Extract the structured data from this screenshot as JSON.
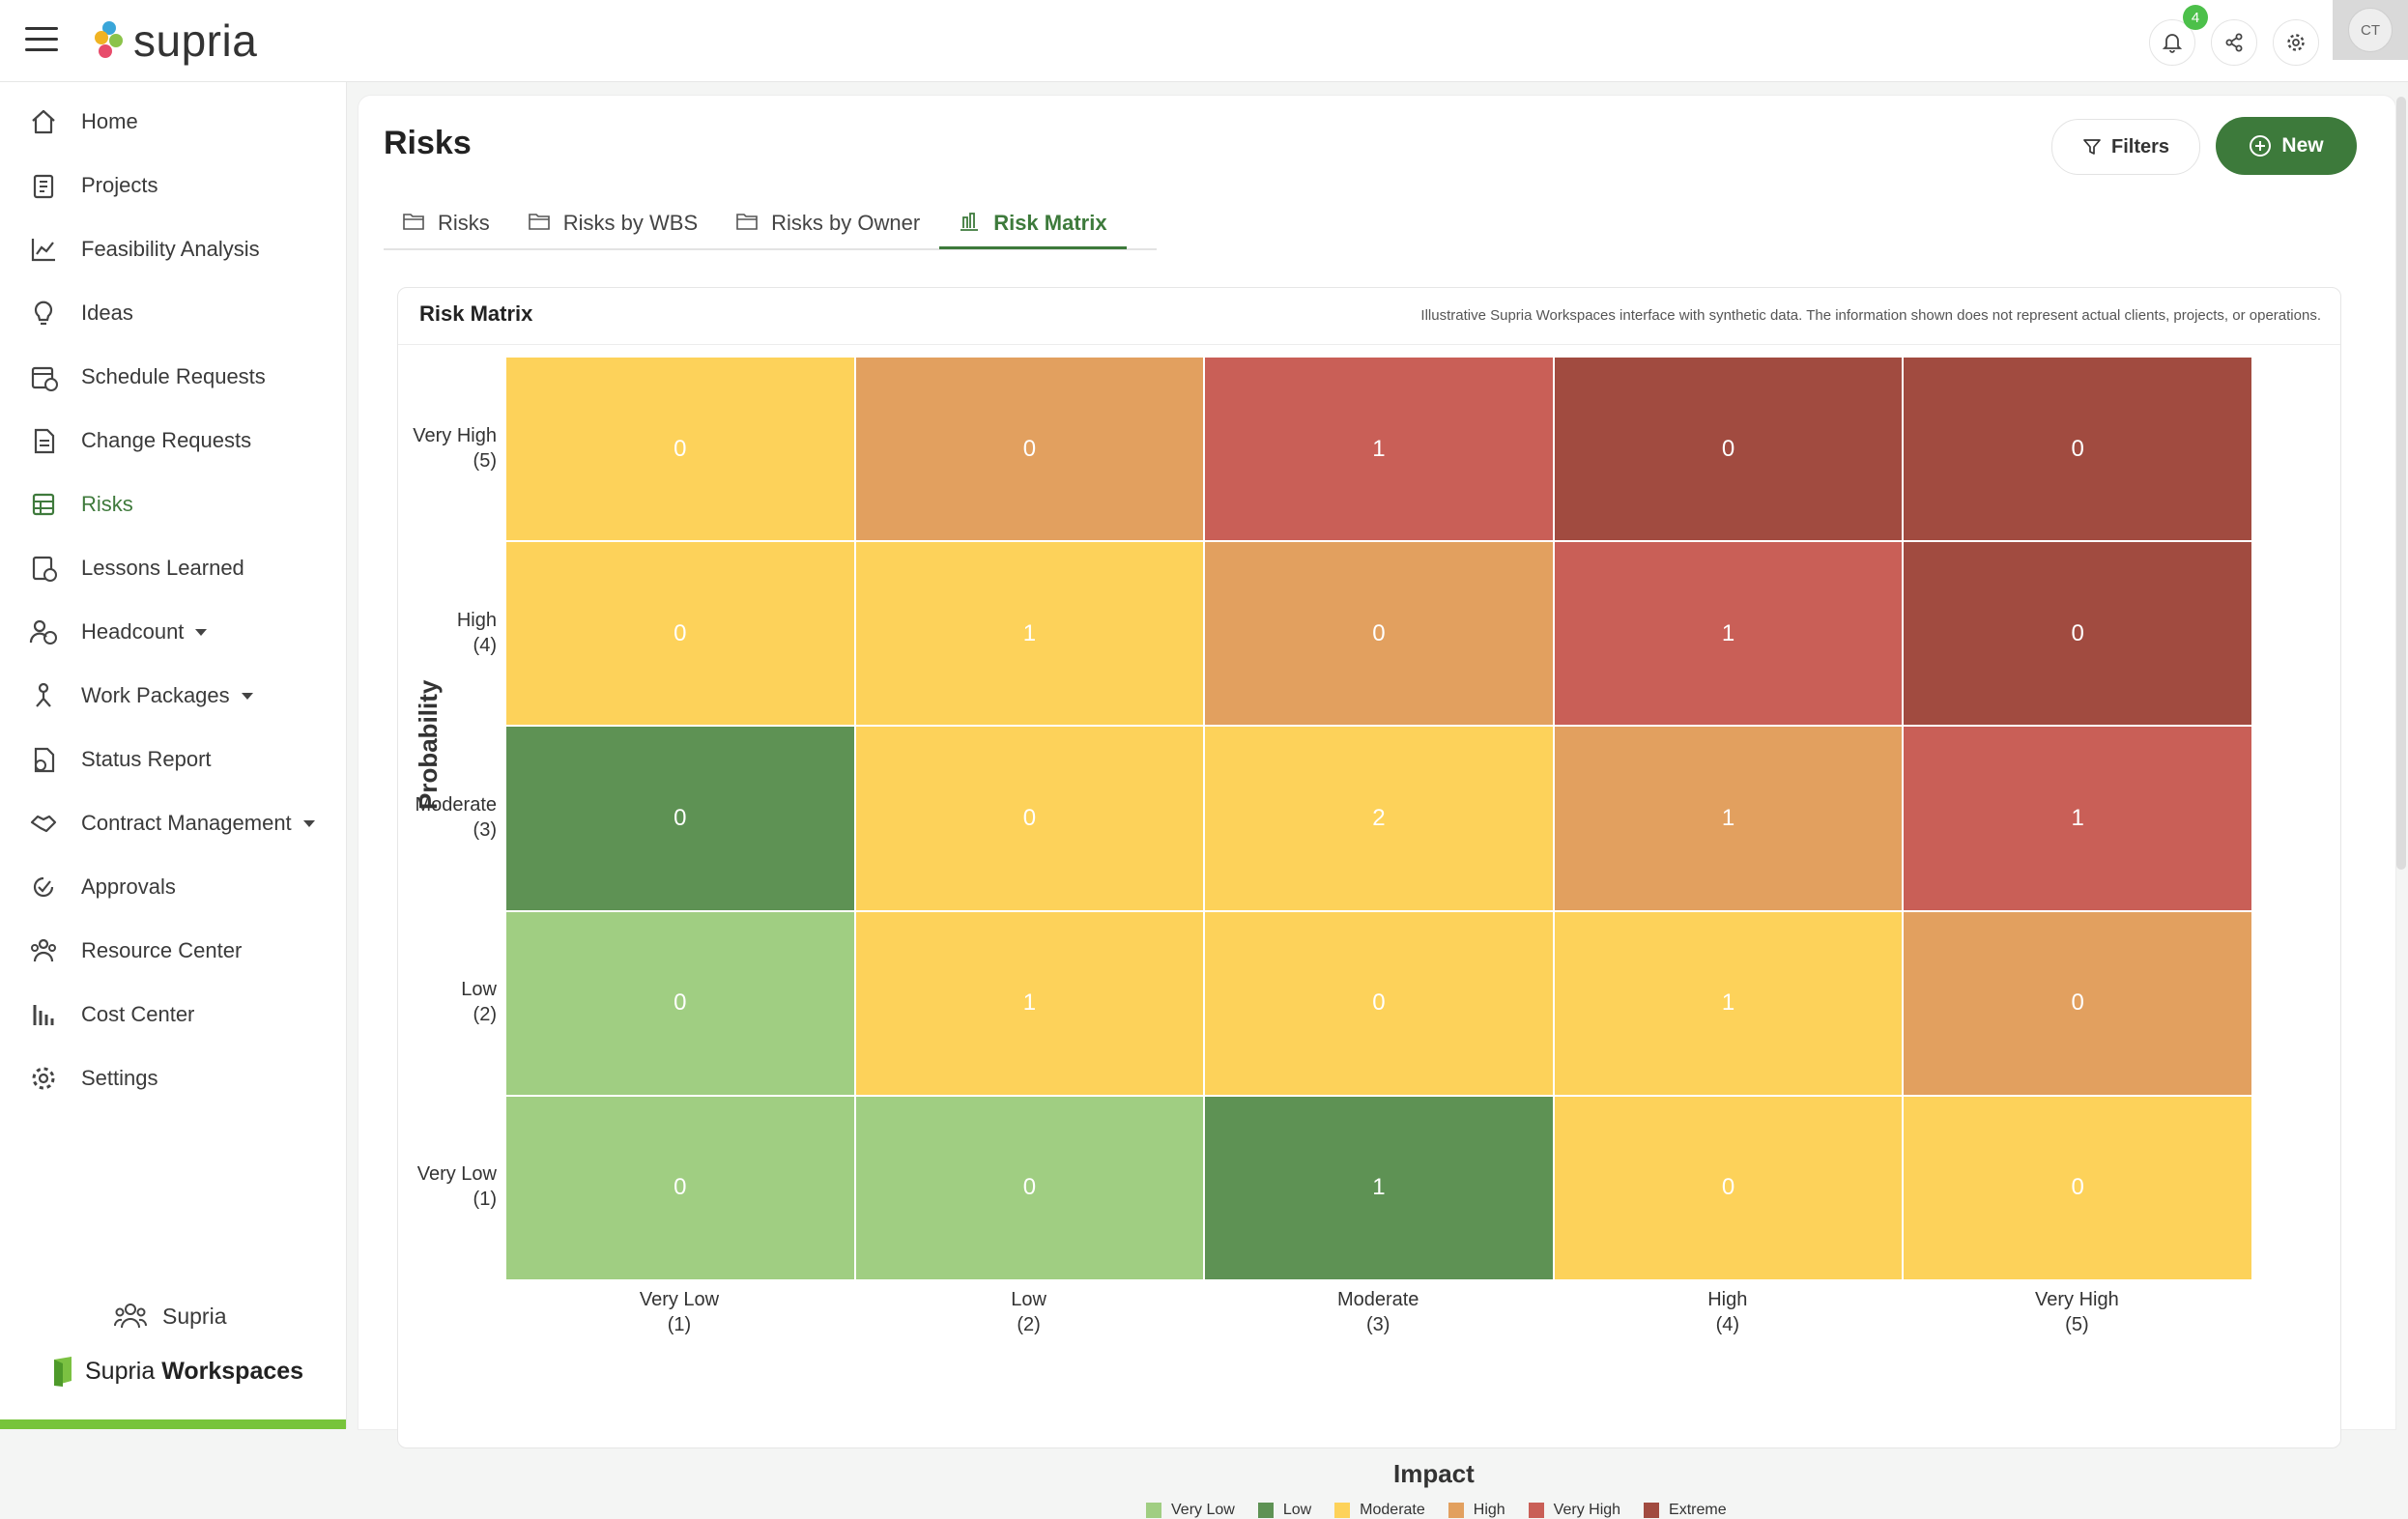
{
  "app": {
    "name": "supria"
  },
  "header": {
    "notification_count": "4",
    "avatar_initials": "CT"
  },
  "sidebar": {
    "items": [
      {
        "label": "Home",
        "icon": "home-icon",
        "active": false
      },
      {
        "label": "Projects",
        "icon": "clipboard-icon",
        "active": false
      },
      {
        "label": "Feasibility Analysis",
        "icon": "trend-chart-icon",
        "active": false
      },
      {
        "label": "Ideas",
        "icon": "lightbulb-icon",
        "active": false
      },
      {
        "label": "Schedule Requests",
        "icon": "calendar-check-icon",
        "active": false
      },
      {
        "label": "Change Requests",
        "icon": "document-icon",
        "active": false
      },
      {
        "label": "Risks",
        "icon": "grid-icon",
        "active": true
      },
      {
        "label": "Lessons Learned",
        "icon": "lesson-icon",
        "active": false
      },
      {
        "label": "Headcount",
        "icon": "people-check-icon",
        "active": false,
        "dropdown": true
      },
      {
        "label": "Work Packages",
        "icon": "work-package-icon",
        "active": false,
        "dropdown": true
      },
      {
        "label": "Status Report",
        "icon": "report-icon",
        "active": false
      },
      {
        "label": "Contract Management",
        "icon": "handshake-icon",
        "active": false,
        "dropdown": true
      },
      {
        "label": "Approvals",
        "icon": "approval-icon",
        "active": false
      },
      {
        "label": "Resource Center",
        "icon": "resource-icon",
        "active": false
      },
      {
        "label": "Cost Center",
        "icon": "bar-chart-icon",
        "active": false
      },
      {
        "label": "Settings",
        "icon": "gear-icon",
        "active": false
      }
    ],
    "footer_org": "Supria",
    "footer_brand_a": "Supria ",
    "footer_brand_b": "Workspaces"
  },
  "page": {
    "title": "Risks",
    "filters_label": "Filters",
    "new_label": "New",
    "tabs": [
      {
        "label": "Risks",
        "active": false
      },
      {
        "label": "Risks by WBS",
        "active": false
      },
      {
        "label": "Risks by Owner",
        "active": false
      },
      {
        "label": "Risk Matrix",
        "active": true
      }
    ]
  },
  "card": {
    "title": "Risk Matrix",
    "disclaimer": "Illustrative Supria Workspaces interface with synthetic data. The information shown does not represent actual clients, projects, or operations."
  },
  "colors": {
    "accent": "#3d7a3b",
    "Very Low": "#a0ce82",
    "Low": "#5e9254",
    "Moderate": "#fdd25a",
    "High": "#e2a05f",
    "Very High": "#c95f57",
    "Extreme": "#a14b40"
  },
  "chart_data": {
    "type": "heatmap",
    "title": "Risk Matrix",
    "xlabel": "Impact",
    "ylabel": "Probability",
    "x_categories": [
      [
        "Very Low",
        "(1)"
      ],
      [
        "Low",
        "(2)"
      ],
      [
        "Moderate",
        "(3)"
      ],
      [
        "High",
        "(4)"
      ],
      [
        "Very High",
        "(5)"
      ]
    ],
    "y_categories_top_to_bottom": [
      [
        "Very High",
        "(5)"
      ],
      [
        "High",
        "(4)"
      ],
      [
        "Moderate",
        "(3)"
      ],
      [
        "Low",
        "(2)"
      ],
      [
        "Very Low",
        "(1)"
      ]
    ],
    "values_top_to_bottom": [
      [
        0,
        0,
        1,
        0,
        0
      ],
      [
        0,
        1,
        0,
        1,
        0
      ],
      [
        0,
        0,
        2,
        1,
        1
      ],
      [
        0,
        1,
        0,
        1,
        0
      ],
      [
        0,
        0,
        1,
        0,
        0
      ]
    ],
    "levels_top_to_bottom": [
      [
        "Moderate",
        "High",
        "Very High",
        "Extreme",
        "Extreme"
      ],
      [
        "Moderate",
        "Moderate",
        "High",
        "Very High",
        "Extreme"
      ],
      [
        "Low",
        "Moderate",
        "Moderate",
        "High",
        "Very High"
      ],
      [
        "Very Low",
        "Moderate",
        "Moderate",
        "Moderate",
        "High"
      ],
      [
        "Very Low",
        "Very Low",
        "Low",
        "Moderate",
        "Moderate"
      ]
    ],
    "legend": [
      "Very Low",
      "Low",
      "Moderate",
      "High",
      "Very High",
      "Extreme"
    ],
    "legend_placement": "bottom-center"
  }
}
